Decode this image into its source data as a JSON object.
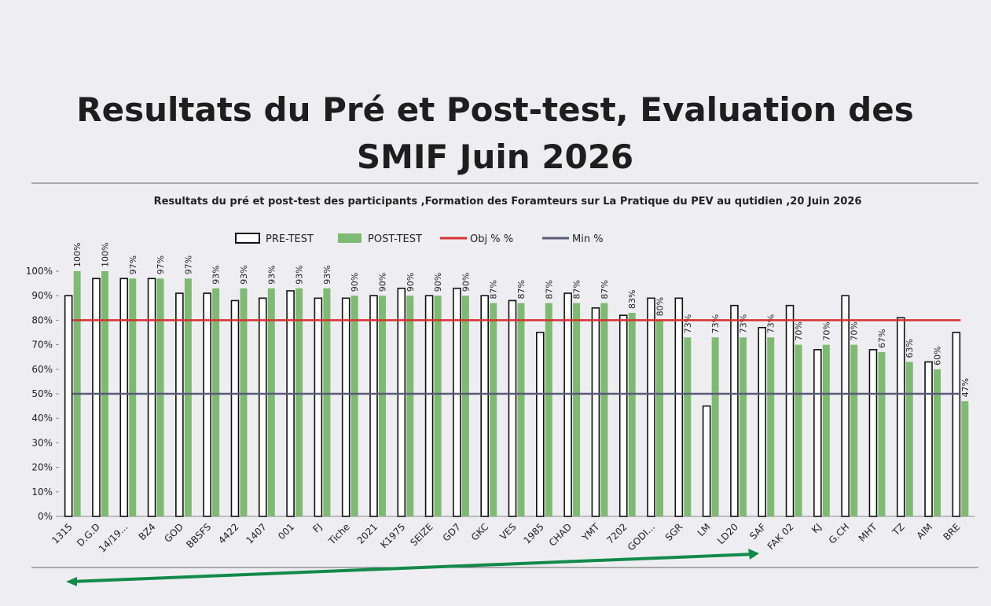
{
  "chart_data": {
    "type": "bar",
    "title": "Resultats du Pré et Post-test, Evaluation des SMIF Juin 2026",
    "subtitle": "Resultats du pré et post-test des participants ,Formation des Foramteurs sur La Pratique du PEV au qutidien  ,20 Juin 2026",
    "categories": [
      "1315",
      "D.G.D",
      "14/19...",
      "BZ4",
      "GOD",
      "BBSFS",
      "4422",
      "1407",
      "001",
      "FJ",
      "Tiche",
      "2021",
      "K1975",
      "SEIZE",
      "GD7",
      "GKC",
      "VES",
      "1985",
      "CHAD",
      "YMT",
      "7202",
      "GODI...",
      "SGR",
      "LM",
      "LD20",
      "SAF",
      "FAK 02",
      "KJ",
      "G.CH",
      "MHT",
      "TZ",
      "AIM",
      "BRE"
    ],
    "series": [
      {
        "name": "PRE-TEST",
        "color": "#ffffff",
        "stroke": "#111111",
        "values": [
          90,
          97,
          97,
          97,
          91,
          91,
          88,
          89,
          92,
          89,
          89,
          90,
          93,
          90,
          93,
          90,
          88,
          75,
          91,
          85,
          82,
          89,
          89,
          45,
          86,
          77,
          86,
          68,
          90,
          68,
          81,
          63,
          75
        ]
      },
      {
        "name": "POST-TEST",
        "color": "#7fba72",
        "values": [
          100,
          100,
          97,
          97,
          97,
          93,
          93,
          93,
          93,
          93,
          90,
          90,
          90,
          90,
          90,
          87,
          87,
          87,
          87,
          87,
          83,
          80,
          73,
          73,
          73,
          73,
          70,
          70,
          70,
          67,
          63,
          60,
          47
        ],
        "value_labels": [
          "100%",
          "100%",
          "97%",
          "97%",
          "97%",
          "93%",
          "93%",
          "93%",
          "93%",
          "93%",
          "90%",
          "90%",
          "90%",
          "90%",
          "90%",
          "87%",
          "87%",
          "87%",
          "87%",
          "87%",
          "83%",
          "80%",
          "73%",
          "73%",
          "73%",
          "73%",
          "70%",
          "70%",
          "70%",
          "67%",
          "63%",
          "60%",
          "47%"
        ]
      },
      {
        "name": "Obj % %",
        "type": "line",
        "color": "#d63030",
        "values": [
          80,
          80,
          80,
          80,
          80,
          80,
          80,
          80,
          80,
          80,
          80,
          80,
          80,
          80,
          80,
          80,
          80,
          80,
          80,
          80,
          80,
          80,
          80,
          80,
          80,
          80,
          80,
          80,
          80,
          80,
          80,
          80,
          80
        ]
      },
      {
        "name": "Min %",
        "type": "line",
        "color": "#5a5a78",
        "values": [
          50,
          50,
          50,
          50,
          50,
          50,
          50,
          50,
          50,
          50,
          50,
          50,
          50,
          50,
          50,
          50,
          50,
          50,
          50,
          50,
          50,
          50,
          50,
          50,
          50,
          50,
          50,
          50,
          50,
          50,
          50,
          50,
          50
        ]
      }
    ],
    "ylim": [
      0,
      100
    ],
    "yticks": [
      {
        "value": 0,
        "label": "0%"
      },
      {
        "value": 10,
        "label": "10%"
      },
      {
        "value": 20,
        "label": "20%"
      },
      {
        "value": 30,
        "label": "30%"
      },
      {
        "value": 40,
        "label": "40%"
      },
      {
        "value": 50,
        "label": "50%"
      },
      {
        "value": 60,
        "label": "60%"
      },
      {
        "value": 70,
        "label": "70%"
      },
      {
        "value": 80,
        "label": "80%"
      },
      {
        "value": 90,
        "label": "90%"
      },
      {
        "value": 100,
        "label": "100%"
      }
    ],
    "grid": false,
    "legend": "top"
  }
}
